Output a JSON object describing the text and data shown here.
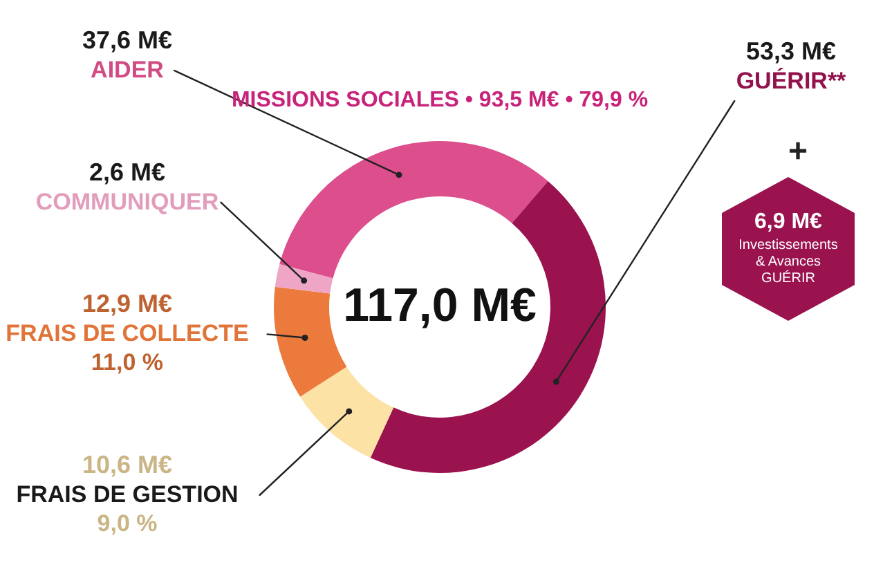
{
  "chart_data": {
    "type": "donut",
    "categories": [
      "AIDER",
      "GUÉRIR**",
      "FRAIS DE GESTION",
      "FRAIS DE COLLECTE",
      "COMMUNIQUER"
    ],
    "values": [
      37.6,
      53.3,
      10.6,
      12.9,
      2.6
    ],
    "colors": [
      "#dc4f8c",
      "#9a134f",
      "#fde2a6",
      "#ec7a3c",
      "#eea5c6"
    ],
    "value_labels": [
      "37,6 M€",
      "53,3 M€",
      "10,6 M€",
      "12,9 M€",
      "2,6 M€"
    ],
    "annotations": [
      "117,0 M€",
      "MISSIONS SOCIALES • 93,5 M€ • 79,9 %",
      "+",
      "6,9 M€",
      "Investissements & Avances GUÉRIR",
      {
        "text": "11,0 %",
        "x": "FRAIS DE COLLECTE"
      },
      {
        "text": "9,0 %",
        "x": "FRAIS DE GESTION"
      }
    ]
  }
}
